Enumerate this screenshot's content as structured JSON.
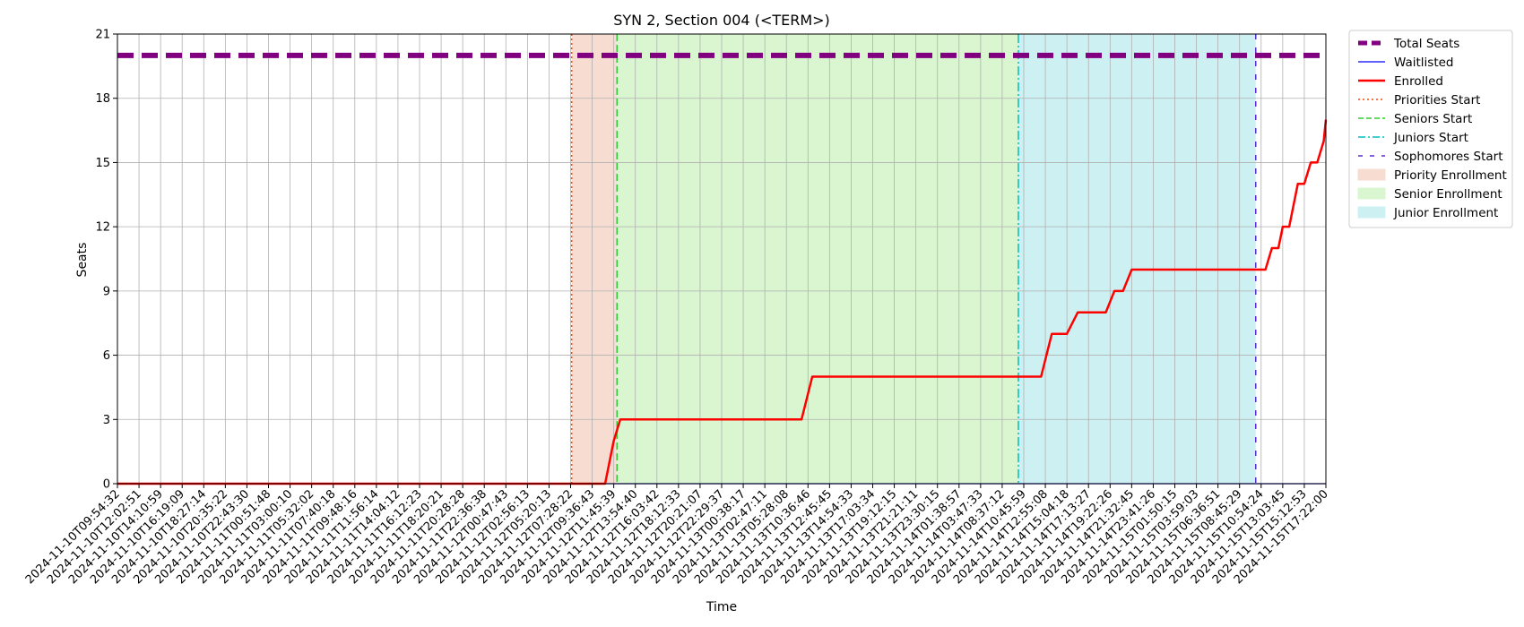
{
  "chart_data": {
    "type": "line",
    "title": "SYN 2, Section 004 (<TERM>)",
    "xlabel": "Time",
    "ylabel": "Seats",
    "ylim": [
      0,
      21
    ],
    "yticks": [
      0,
      3,
      6,
      9,
      12,
      15,
      18,
      21
    ],
    "grid": true,
    "legend_position": "outside-right-top",
    "x_tick_labels": [
      "2024-11-10T09:54:32",
      "2024-11-10T12:02:51",
      "2024-11-10T14:10:59",
      "2024-11-10T16:19:09",
      "2024-11-10T18:27:14",
      "2024-11-10T20:35:22",
      "2024-11-10T22:43:30",
      "2024-11-11T00:51:48",
      "2024-11-11T03:00:10",
      "2024-11-11T05:32:02",
      "2024-11-11T07:40:18",
      "2024-11-11T09:48:16",
      "2024-11-11T11:56:14",
      "2024-11-11T14:04:12",
      "2024-11-11T16:12:23",
      "2024-11-11T18:20:21",
      "2024-11-11T20:28:28",
      "2024-11-11T22:36:38",
      "2024-11-12T00:47:43",
      "2024-11-12T02:56:13",
      "2024-11-12T05:20:13",
      "2024-11-12T07:28:22",
      "2024-11-12T09:36:43",
      "2024-11-12T11:45:39",
      "2024-11-12T13:54:40",
      "2024-11-12T16:03:42",
      "2024-11-12T18:12:33",
      "2024-11-12T20:21:07",
      "2024-11-12T22:29:37",
      "2024-11-13T00:38:17",
      "2024-11-13T02:47:11",
      "2024-11-13T05:28:08",
      "2024-11-13T10:36:46",
      "2024-11-13T12:45:45",
      "2024-11-13T14:54:33",
      "2024-11-13T17:03:34",
      "2024-11-13T19:12:15",
      "2024-11-13T21:21:11",
      "2024-11-13T23:30:15",
      "2024-11-14T01:38:57",
      "2024-11-14T03:47:33",
      "2024-11-14T08:37:12",
      "2024-11-14T10:45:59",
      "2024-11-14T12:55:08",
      "2024-11-14T15:04:18",
      "2024-11-14T17:13:27",
      "2024-11-14T19:22:26",
      "2024-11-14T21:32:45",
      "2024-11-14T23:41:26",
      "2024-11-15T01:50:15",
      "2024-11-15T03:59:03",
      "2024-11-15T06:36:51",
      "2024-11-15T08:45:29",
      "2024-11-15T10:54:24",
      "2024-11-15T13:03:45",
      "2024-11-15T15:12:53",
      "2024-11-15T17:22:00"
    ],
    "series": [
      {
        "name": "Total Seats",
        "color": "#800080",
        "style": "dashed-thick",
        "x_index": [
          0,
          56
        ],
        "values": [
          20,
          20
        ]
      },
      {
        "name": "Waitlisted",
        "color": "#0000ff",
        "style": "solid-thin",
        "x_index": [
          0,
          56
        ],
        "values": [
          0,
          0
        ]
      },
      {
        "name": "Enrolled",
        "color": "#ff0000",
        "style": "solid",
        "x_index": [
          0,
          22.6,
          23.0,
          23.3,
          23.5,
          31.7,
          32.2,
          42.8,
          43.3,
          44.0,
          44.5,
          45.8,
          46.2,
          46.6,
          47.0,
          53.2,
          53.5,
          53.8,
          54.0,
          54.3,
          54.7,
          55.0,
          55.3,
          55.6,
          55.9,
          56.0
        ],
        "values": [
          0,
          0,
          2,
          3,
          3,
          3,
          5,
          5,
          7,
          7,
          8,
          8,
          9,
          9,
          10,
          10,
          11,
          11,
          12,
          12,
          14,
          14,
          15,
          15,
          16,
          17
        ]
      }
    ],
    "vertical_lines": [
      {
        "name": "Priorities Start",
        "x_index": 21.05,
        "color": "#ff4500",
        "dash": "2,3"
      },
      {
        "name": "Seniors Start",
        "x_index": 23.15,
        "color": "#32cd32",
        "dash": "8,4"
      },
      {
        "name": "Juniors Start",
        "x_index": 41.75,
        "color": "#00bfbf",
        "dash": "10,3,2,3"
      },
      {
        "name": "Sophomores Start",
        "x_index": 52.75,
        "color": "#5b2ccf",
        "dash": "6,9"
      }
    ],
    "spans": [
      {
        "name": "Priority Enrollment",
        "x_start": 21.05,
        "x_end": 23.15,
        "color": "#f7ddd1"
      },
      {
        "name": "Senior Enrollment",
        "x_start": 23.15,
        "x_end": 41.75,
        "color": "#d9f6d0"
      },
      {
        "name": "Junior Enrollment",
        "x_start": 41.75,
        "x_end": 52.75,
        "color": "#cdf1f3"
      }
    ],
    "legend": [
      {
        "label": "Total Seats",
        "kind": "line",
        "color": "#800080",
        "dash": "10,5",
        "width": 5
      },
      {
        "label": "Waitlisted",
        "kind": "line",
        "color": "#0000ff",
        "dash": "",
        "width": 1.3
      },
      {
        "label": "Enrolled",
        "kind": "line",
        "color": "#ff0000",
        "dash": "",
        "width": 2.5
      },
      {
        "label": "Priorities Start",
        "kind": "line",
        "color": "#ff4500",
        "dash": "2,3",
        "width": 1.5
      },
      {
        "label": "Seniors Start",
        "kind": "line",
        "color": "#32cd32",
        "dash": "6,3",
        "width": 1.5
      },
      {
        "label": "Juniors Start",
        "kind": "line",
        "color": "#00bfbf",
        "dash": "8,3,2,3",
        "width": 1.5
      },
      {
        "label": "Sophomores Start",
        "kind": "line",
        "color": "#5b2ccf",
        "dash": "5,8",
        "width": 1.5
      },
      {
        "label": "Priority Enrollment",
        "kind": "patch",
        "color": "#f7ddd1",
        "dash": "",
        "width": 0
      },
      {
        "label": "Senior Enrollment",
        "kind": "patch",
        "color": "#d9f6d0",
        "dash": "",
        "width": 0
      },
      {
        "label": "Junior Enrollment",
        "kind": "patch",
        "color": "#cdf1f3",
        "dash": "",
        "width": 0
      }
    ]
  }
}
